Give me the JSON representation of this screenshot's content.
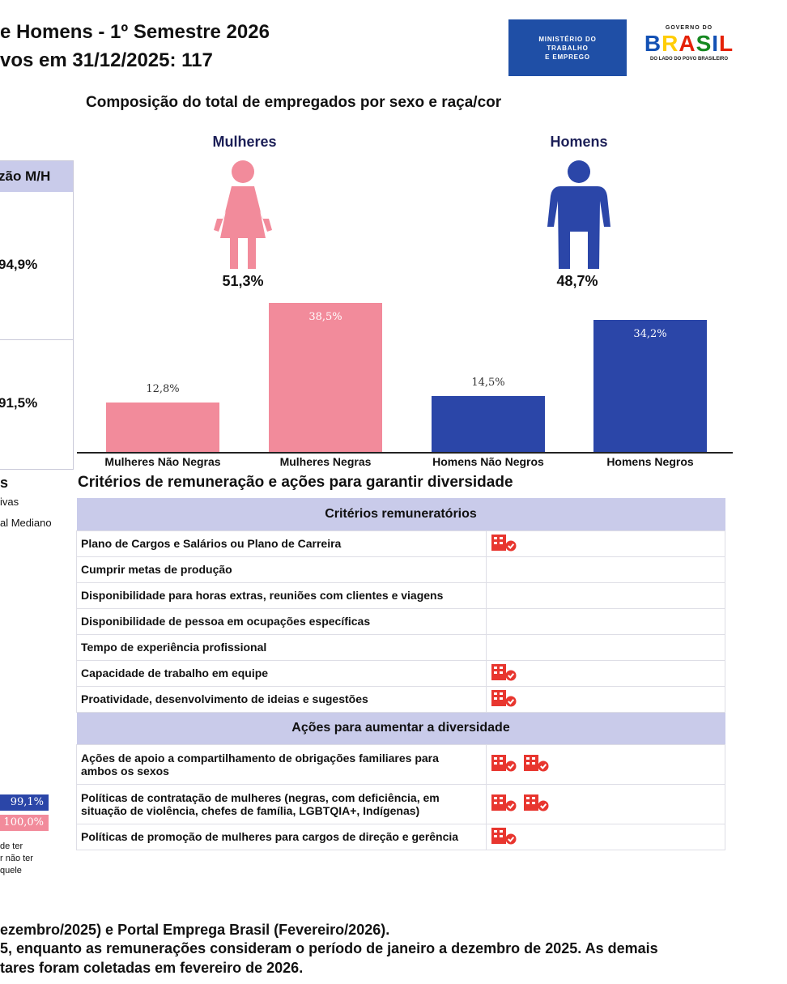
{
  "header": {
    "title_line1": "e Homens - 1º Semestre 2026",
    "title_line2": "vos em 31/12/2025: 117"
  },
  "logos": {
    "ministry_line1": "MINISTÉRIO DO",
    "ministry_line2": "TRABALHO",
    "ministry_line3": "E EMPREGO",
    "gov_top": "GOVERNO DO",
    "gov_letters": [
      "B",
      "R",
      "A",
      "S",
      "I",
      "L"
    ],
    "gov_sub": "DO LADO DO POVO BRASILEIRO"
  },
  "left_panel": {
    "header": "zão M/H",
    "value1": "94,9%",
    "value2": "91,5%",
    "fragment_s": "s",
    "fragment_ivas": "ivas",
    "fragment_mediano": "al Mediano",
    "badge1": "99,1%",
    "badge2": "100,0%",
    "note1": "de ter",
    "note2": "r não ter",
    "note3": "quele"
  },
  "composition": {
    "title": "Composição do total de empregados por sexo e raça/cor",
    "women_label": "Mulheres",
    "men_label": "Homens",
    "women_pct": "51,3%",
    "men_pct": "48,7%",
    "women_color": "#f28b9b",
    "men_color": "#2b46a8"
  },
  "chart_data": {
    "type": "bar",
    "categories": [
      "Mulheres Não Negras",
      "Mulheres Negras",
      "Homens Não Negros",
      "Homens Negros"
    ],
    "values": [
      12.8,
      38.5,
      14.5,
      34.2
    ],
    "value_labels": [
      "12,8%",
      "38,5%",
      "14,5%",
      "34,2%"
    ],
    "colors": [
      "#f28b9b",
      "#f28b9b",
      "#2b46a8",
      "#2b46a8"
    ],
    "ylim": [
      0,
      38.5
    ]
  },
  "criteria": {
    "section_title": "Critérios de remuneração e ações para garantir diversidade",
    "header_criteria": "Critérios remuneratórios",
    "header_actions": "Ações para aumentar a diversidade",
    "rows": [
      {
        "label": "Plano de Cargos e Salários ou Plano de Carreira",
        "icons": 1
      },
      {
        "label": "Cumprir metas de produção",
        "icons": 0
      },
      {
        "label": "Disponibilidade para horas extras, reuniões com clientes e viagens",
        "icons": 0
      },
      {
        "label": "Disponibilidade de pessoa em ocupações específicas",
        "icons": 0
      },
      {
        "label": "Tempo de experiência profissional",
        "icons": 0
      },
      {
        "label": "Capacidade de trabalho em equipe",
        "icons": 1
      },
      {
        "label": "Proatividade, desenvolvimento de ideias e sugestões",
        "icons": 1
      }
    ],
    "action_rows": [
      {
        "label_line1": "Ações de apoio a compartilhamento de obrigações familiares para",
        "label_line2": "ambos os sexos",
        "icons": 2
      },
      {
        "label_line1": "Políticas de contratação de mulheres (negras, com deficiência, em",
        "label_line2": "situação de violência, chefes de família, LGBTQIA+, Indígenas)",
        "icons": 2
      },
      {
        "label_line1": "Políticas de promoção de mulheres para cargos de direção e gerência",
        "label_line2": "",
        "icons": 1
      }
    ],
    "icon_name": "building-check-icon",
    "icon_color": "#e8362f"
  },
  "footer": {
    "line1": "ezembro/2025) e Portal Emprega Brasil (Fevereiro/2026).",
    "line2": "5, enquanto as remunerações consideram o período de janeiro a dezembro de 2025. As demais",
    "line3": "tares foram coletadas em fevereiro de 2026."
  }
}
